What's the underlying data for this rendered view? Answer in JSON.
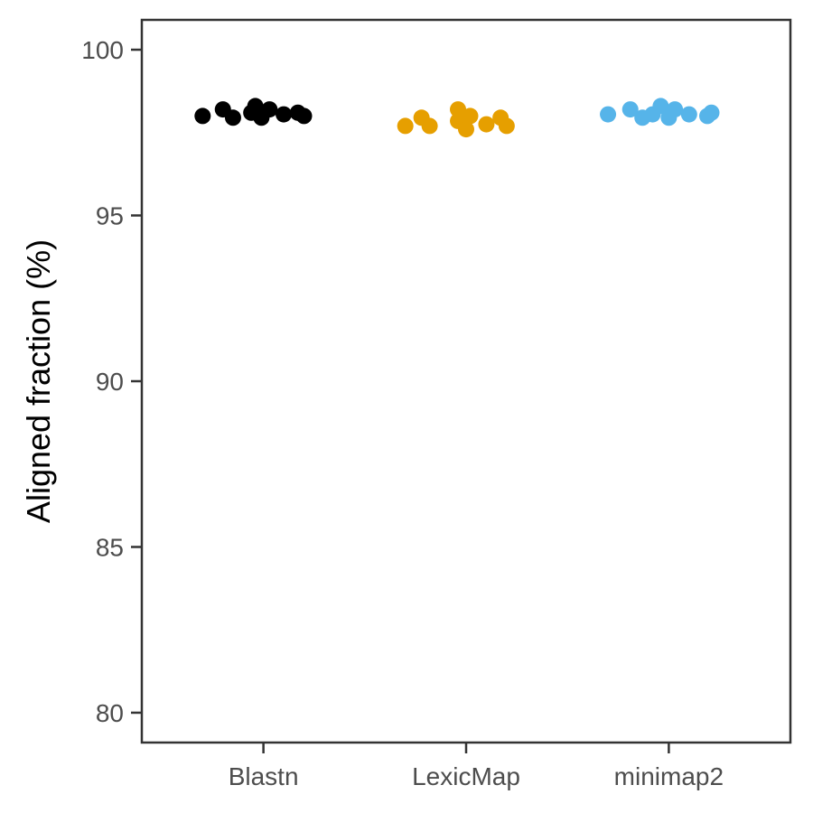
{
  "chart_data": {
    "type": "scatter",
    "subtype": "jittered strip plot",
    "title": "",
    "xlabel": "",
    "ylabel": "Aligned fraction (%)",
    "ylim": [
      79.1,
      100.9
    ],
    "yticks": [
      80,
      85,
      90,
      95,
      100
    ],
    "grid": false,
    "legend": "none",
    "categories": [
      "Blastn",
      "LexicMap",
      "minimap2"
    ],
    "series": [
      {
        "category": "Blastn",
        "color": "#000000",
        "points": [
          {
            "jitter": -0.3,
            "y": 98.0
          },
          {
            "jitter": -0.2,
            "y": 98.2
          },
          {
            "jitter": -0.15,
            "y": 97.95
          },
          {
            "jitter": -0.06,
            "y": 98.1
          },
          {
            "jitter": -0.04,
            "y": 98.3
          },
          {
            "jitter": -0.01,
            "y": 97.95
          },
          {
            "jitter": 0.03,
            "y": 98.2
          },
          {
            "jitter": 0.1,
            "y": 98.05
          },
          {
            "jitter": 0.17,
            "y": 98.1
          },
          {
            "jitter": 0.2,
            "y": 98.0
          }
        ]
      },
      {
        "category": "LexicMap",
        "color": "#E69F00",
        "points": [
          {
            "jitter": -0.3,
            "y": 97.7
          },
          {
            "jitter": -0.22,
            "y": 97.95
          },
          {
            "jitter": -0.18,
            "y": 97.7
          },
          {
            "jitter": -0.04,
            "y": 98.2
          },
          {
            "jitter": -0.04,
            "y": 97.85
          },
          {
            "jitter": 0.0,
            "y": 97.6
          },
          {
            "jitter": 0.02,
            "y": 98.0
          },
          {
            "jitter": 0.1,
            "y": 97.75
          },
          {
            "jitter": 0.17,
            "y": 97.95
          },
          {
            "jitter": 0.2,
            "y": 97.7
          }
        ]
      },
      {
        "category": "minimap2",
        "color": "#56B4E9",
        "points": [
          {
            "jitter": -0.3,
            "y": 98.05
          },
          {
            "jitter": -0.19,
            "y": 98.2
          },
          {
            "jitter": -0.13,
            "y": 97.95
          },
          {
            "jitter": -0.08,
            "y": 98.05
          },
          {
            "jitter": -0.04,
            "y": 98.3
          },
          {
            "jitter": 0.0,
            "y": 97.95
          },
          {
            "jitter": 0.03,
            "y": 98.2
          },
          {
            "jitter": 0.1,
            "y": 98.05
          },
          {
            "jitter": 0.19,
            "y": 98.0
          },
          {
            "jitter": 0.21,
            "y": 98.1
          }
        ]
      }
    ]
  }
}
